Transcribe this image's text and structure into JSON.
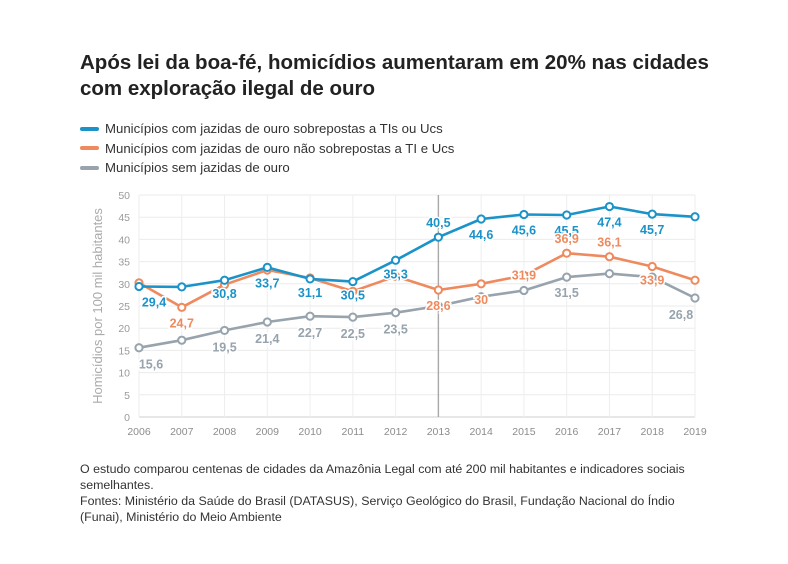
{
  "title": "Após lei da boa-fé, homicídios aumentaram em 20% nas cidades com exploração ilegal de ouro",
  "legend": [
    {
      "label": "Municípios com jazidas de ouro sobrepostas a TIs ou Ucs",
      "color": "#1b93c9"
    },
    {
      "label": "Municípios com jazidas de ouro não sobrepostas a TI e Ucs",
      "color": "#ee8a5d"
    },
    {
      "label": "Municípios sem jazidas de ouro",
      "color": "#97a3ad"
    }
  ],
  "chart_data": {
    "type": "line",
    "title": "Após lei da boa-fé, homicídios aumentaram em 20% nas cidades com exploração ilegal de ouro",
    "xlabel": "",
    "ylabel": "Homicídios por 100 mil habitantes",
    "x": [
      "2006",
      "2007",
      "2008",
      "2009",
      "2010",
      "2011",
      "2012",
      "2013",
      "2014",
      "2015",
      "2016",
      "2017",
      "2018",
      "2019"
    ],
    "yticks": [
      "0",
      "5",
      "10",
      "15",
      "20",
      "25",
      "30",
      "35",
      "40",
      "45",
      "50"
    ],
    "ylim": [
      0,
      50
    ],
    "grid": true,
    "reference_line_x": "2013",
    "series": [
      {
        "name": "Municípios com jazidas de ouro sobrepostas a TIs ou Ucs",
        "color": "#1b93c9",
        "values": [
          29.4,
          29.3,
          30.8,
          33.7,
          31.1,
          30.5,
          35.3,
          40.5,
          44.6,
          45.6,
          45.5,
          47.4,
          45.7,
          45.1
        ],
        "labels": [
          "29,4",
          "",
          "30,8",
          "33,7",
          "31,1",
          "30,5",
          "35,3",
          "40,5",
          "44,6",
          "45,6",
          "45,5",
          "47,4",
          "45,7",
          ""
        ]
      },
      {
        "name": "Municípios com jazidas de ouro não sobrepostas a TI e Ucs",
        "color": "#ee8a5d",
        "values": [
          30.2,
          24.7,
          29.8,
          33.1,
          31.3,
          28.3,
          31.7,
          28.6,
          30.0,
          31.9,
          36.9,
          36.1,
          33.9,
          30.8
        ],
        "labels": [
          "",
          "24,7",
          "",
          "",
          "",
          "",
          "",
          "28,6",
          "30",
          "31,9",
          "36,9",
          "36,1",
          "33,9",
          ""
        ]
      },
      {
        "name": "Municípios sem jazidas de ouro",
        "color": "#97a3ad",
        "values": [
          15.6,
          17.3,
          19.5,
          21.4,
          22.7,
          22.5,
          23.5,
          25.0,
          27.1,
          28.5,
          31.5,
          32.3,
          31.5,
          26.8
        ],
        "labels": [
          "15,6",
          "",
          "19,5",
          "21,4",
          "22,7",
          "22,5",
          "23,5",
          "",
          "",
          "",
          "31,5",
          "",
          "",
          "26,8"
        ]
      }
    ]
  },
  "notes": [
    "O estudo comparou centenas de cidades da Amazônia Legal com até 200 mil habitantes e indicadores sociais semelhantes.",
    "Fontes: Ministério da Saúde do Brasil (DATASUS), Serviço Geológico do Brasil, Fundação Nacional do Índio (Funai), Ministério do Meio Ambiente"
  ]
}
